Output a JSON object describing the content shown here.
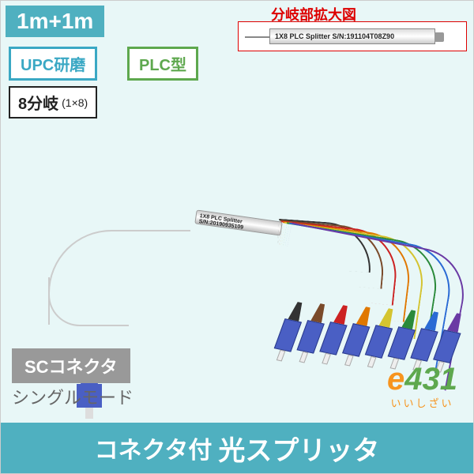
{
  "size_tag": "1m+1m",
  "upc_tag": "UPC研磨",
  "plc_tag": "PLC型",
  "split_tag": "8分岐",
  "split_sub": "(1×8)",
  "sc_tag": "SCコネクタ",
  "mode": "シングルモード",
  "zoom_label": "分岐部拡大図",
  "zoom_text": "1X8 PLC Splitter  S/N:191104T08Z90",
  "plc_text": "1X8 PLC Splitter S/N:20190935109",
  "logo_e": "e",
  "logo_num": "431",
  "logo_jp": "いいしざい",
  "footer_small": "コネクタ付",
  "footer_big": "光スプリッタ",
  "colors": {
    "teal": "#4fb0c0",
    "green": "#5ea84e",
    "orange": "#f7941e",
    "red": "#d00",
    "connector": "#4a5fc4"
  },
  "wire_colors": [
    "#333333",
    "#7a4a2a",
    "#cc2222",
    "#e07800",
    "#d4c430",
    "#2a8a3a",
    "#2a6ad4",
    "#6a3aa4"
  ]
}
